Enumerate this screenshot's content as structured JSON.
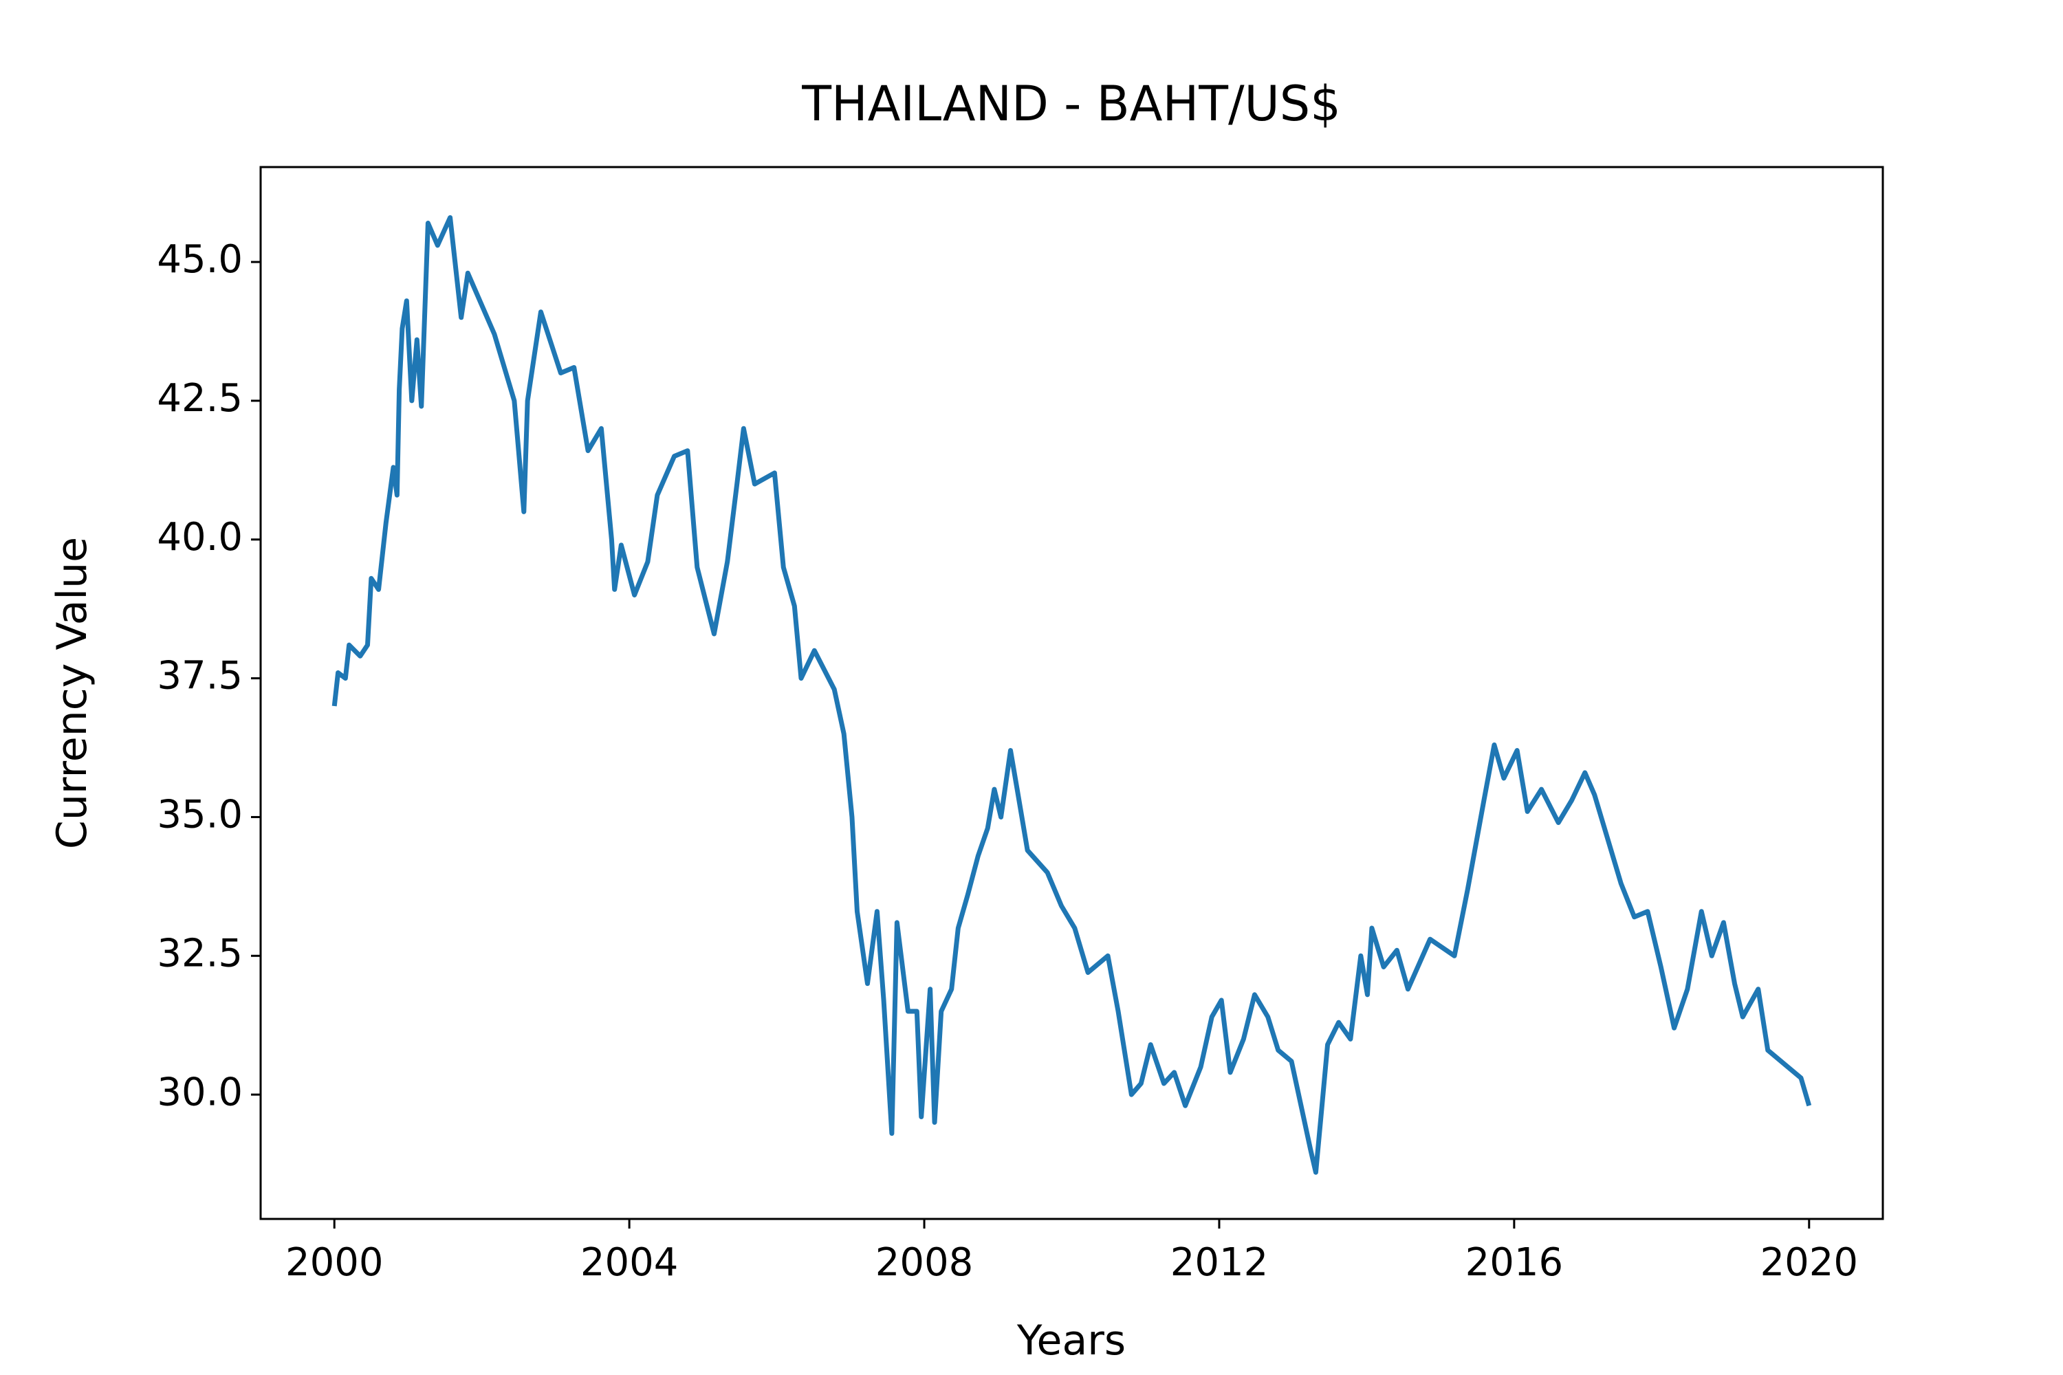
{
  "chart_data": {
    "type": "line",
    "title": "THAILAND - BAHT/US$",
    "x_label": "Years",
    "y_label": "Currency Value",
    "x": [
      2000.0,
      2000.05,
      2000.15,
      2000.2,
      2000.35,
      2000.45,
      2000.5,
      2000.6,
      2000.7,
      2000.8,
      2000.85,
      2000.88,
      2000.92,
      2000.98,
      2001.05,
      2001.12,
      2001.18,
      2001.27,
      2001.4,
      2001.57,
      2001.72,
      2001.81,
      2002.17,
      2002.44,
      2002.57,
      2002.62,
      2002.71,
      2002.8,
      2003.07,
      2003.25,
      2003.44,
      2003.62,
      2003.76,
      2003.8,
      2003.89,
      2004.07,
      2004.25,
      2004.38,
      2004.61,
      2004.79,
      2004.92,
      2005.15,
      2005.33,
      2005.46,
      2005.55,
      2005.7,
      2005.97,
      2006.09,
      2006.24,
      2006.33,
      2006.51,
      2006.78,
      2006.91,
      2007.02,
      2007.09,
      2007.23,
      2007.36,
      2007.45,
      2007.56,
      2007.63,
      2007.78,
      2007.9,
      2007.96,
      2008.08,
      2008.14,
      2008.23,
      2008.37,
      2008.46,
      2008.59,
      2008.73,
      2008.86,
      2008.95,
      2009.04,
      2009.17,
      2009.26,
      2009.4,
      2009.67,
      2009.86,
      2010.04,
      2010.22,
      2010.49,
      2010.63,
      2010.81,
      2010.94,
      2011.07,
      2011.25,
      2011.39,
      2011.54,
      2011.75,
      2011.9,
      2012.03,
      2012.15,
      2012.33,
      2012.48,
      2012.66,
      2012.8,
      2012.98,
      2013.11,
      2013.24,
      2013.31,
      2013.38,
      2013.47,
      2013.62,
      2013.78,
      2013.92,
      2014.01,
      2014.07,
      2014.23,
      2014.41,
      2014.56,
      2014.86,
      2015.19,
      2015.37,
      2015.59,
      2015.73,
      2015.86,
      2016.04,
      2016.18,
      2016.37,
      2016.6,
      2016.78,
      2016.96,
      2017.09,
      2017.27,
      2017.45,
      2017.63,
      2017.81,
      2017.99,
      2018.17,
      2018.35,
      2018.54,
      2018.68,
      2018.84,
      2018.99,
      2019.1,
      2019.31,
      2019.44,
      2019.71,
      2019.89,
      2020.0
    ],
    "series": [
      {
        "color": "#1f77b4",
        "values": [
          37.0,
          37.6,
          37.5,
          38.1,
          37.9,
          38.1,
          39.3,
          39.1,
          40.3,
          41.3,
          40.8,
          42.7,
          43.8,
          44.3,
          42.5,
          43.6,
          42.4,
          45.7,
          45.3,
          45.8,
          44.0,
          44.8,
          43.7,
          42.5,
          40.5,
          42.5,
          43.3,
          44.1,
          43.0,
          43.1,
          41.6,
          42.0,
          40.0,
          39.1,
          39.9,
          39.0,
          39.6,
          40.8,
          41.5,
          41.6,
          39.5,
          38.3,
          39.6,
          41.0,
          42.0,
          41.0,
          41.2,
          39.5,
          38.8,
          37.5,
          38.0,
          37.3,
          36.5,
          35.0,
          33.3,
          32.0,
          33.3,
          31.7,
          29.3,
          33.1,
          31.5,
          31.5,
          29.6,
          31.9,
          29.5,
          31.5,
          31.9,
          33.0,
          33.6,
          34.3,
          34.8,
          35.5,
          35.0,
          36.2,
          35.5,
          34.4,
          34.0,
          33.4,
          33.0,
          32.2,
          32.5,
          31.5,
          30.0,
          30.2,
          30.9,
          30.2,
          30.4,
          29.8,
          30.5,
          31.4,
          31.7,
          30.4,
          31.0,
          31.8,
          31.4,
          30.8,
          30.6,
          29.8,
          29.0,
          28.6,
          29.6,
          30.9,
          31.3,
          31.0,
          32.5,
          31.8,
          33.0,
          32.3,
          32.6,
          31.9,
          32.8,
          32.5,
          33.7,
          35.3,
          36.3,
          35.7,
          36.2,
          35.1,
          35.5,
          34.9,
          35.3,
          35.8,
          35.4,
          34.6,
          33.8,
          33.2,
          33.3,
          32.3,
          31.2,
          31.9,
          33.3,
          32.5,
          33.1,
          32.0,
          31.4,
          31.9,
          30.8,
          30.5,
          30.3,
          29.8
        ]
      }
    ],
    "xlim": [
      1999.0,
      2021.0
    ],
    "xticks": [
      2000,
      2004,
      2008,
      2012,
      2016,
      2020
    ],
    "ylim": [
      27.76,
      46.71
    ],
    "yticks": [
      {
        "value": 30,
        "label": "30.0"
      },
      32.5,
      {
        "value": 35,
        "label": "35.0"
      },
      37.5,
      {
        "value": 40,
        "label": "40.0"
      },
      42.5,
      {
        "value": 45,
        "label": "45.0"
      }
    ]
  }
}
